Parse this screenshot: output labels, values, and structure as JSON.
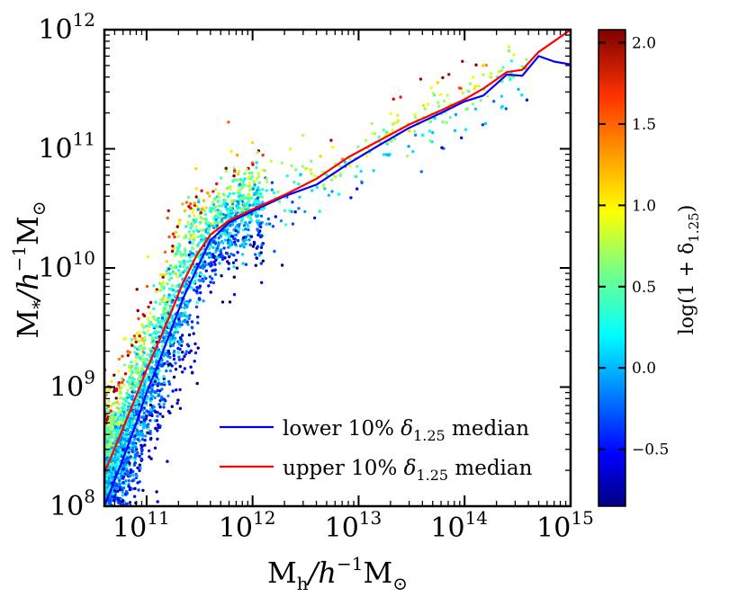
{
  "chart_data": {
    "type": "scatter",
    "xscale": "log",
    "yscale": "log",
    "xlim": [
      40000000000.0,
      1000000000000000.0
    ],
    "ylim": [
      100000000.0,
      1000000000000.0
    ],
    "x_ticks": [
      {
        "value": 100000000000.0,
        "base": "10",
        "exp": "11"
      },
      {
        "value": 1000000000000.0,
        "base": "10",
        "exp": "12"
      },
      {
        "value": 10000000000000.0,
        "base": "10",
        "exp": "13"
      },
      {
        "value": 100000000000000.0,
        "base": "10",
        "exp": "14"
      },
      {
        "value": 1000000000000000.0,
        "base": "10",
        "exp": "15"
      }
    ],
    "y_ticks": [
      {
        "value": 100000000.0,
        "base": "10",
        "exp": "8"
      },
      {
        "value": 1000000000.0,
        "base": "10",
        "exp": "9"
      },
      {
        "value": 10000000000.0,
        "base": "10",
        "exp": "10"
      },
      {
        "value": 100000000000.0,
        "base": "10",
        "exp": "11"
      },
      {
        "value": 1000000000000.0,
        "base": "10",
        "exp": "12"
      }
    ],
    "xlabel": {
      "main": "M",
      "sub": "h",
      "rest": "/h",
      "sup": "−1",
      "end": "M",
      "sun": "⊙"
    },
    "ylabel": {
      "main": "M",
      "sub": "*",
      "rest": "/h",
      "sup": "−1",
      "end": "M",
      "sun": "⊙"
    },
    "colorbar": {
      "label": "log(1 + δ",
      "label_sub": "1.25",
      "label_end": ")",
      "range": [
        -0.85,
        2.08
      ],
      "ticks": [
        {
          "value": -0.5,
          "label": "−0.5"
        },
        {
          "value": 0.0,
          "label": "0.0"
        },
        {
          "value": 0.5,
          "label": "0.5"
        },
        {
          "value": 1.0,
          "label": "1.0"
        },
        {
          "value": 1.5,
          "label": "1.5"
        },
        {
          "value": 2.0,
          "label": "2.0"
        }
      ]
    },
    "series": [
      {
        "name": "lower 10% δ1.25 median",
        "label_pre": "lower 10% ",
        "label_sym": "δ",
        "label_sub": "1.25",
        "label_post": " median",
        "color": "#0000ff",
        "x": [
          40000000000.0,
          60000000000.0,
          80000000000.0,
          100000000000.0,
          130000000000.0,
          170000000000.0,
          220000000000.0,
          300000000000.0,
          400000000000.0,
          600000000000.0,
          1000000000000.0,
          2000000000000.0,
          4000000000000.0,
          8000000000000.0,
          15000000000000.0,
          30000000000000.0,
          60000000000000.0,
          100000000000000.0,
          150000000000000.0,
          250000000000000.0,
          350000000000000.0,
          500000000000000.0,
          700000000000000.0,
          1000000000000000.0
        ],
        "y": [
          100000000.0,
          250000000.0,
          500000000.0,
          900000000.0,
          1600000000.0,
          3000000000.0,
          5500000000.0,
          10000000000.0,
          17000000000.0,
          24000000000.0,
          30000000000.0,
          40000000000.0,
          50000000000.0,
          75000000000.0,
          105000000000.0,
          150000000000.0,
          200000000000.0,
          250000000000.0,
          280000000000.0,
          420000000000.0,
          410000000000.0,
          600000000000.0,
          540000000000.0,
          510000000000.0
        ]
      },
      {
        "name": "upper 10% δ1.25 median",
        "label_pre": "upper 10% ",
        "label_sym": "δ",
        "label_sub": "1.25",
        "label_post": " median",
        "color": "#ff0000",
        "x": [
          40000000000.0,
          60000000000.0,
          80000000000.0,
          100000000000.0,
          130000000000.0,
          170000000000.0,
          220000000000.0,
          300000000000.0,
          400000000000.0,
          600000000000.0,
          1000000000000.0,
          2000000000000.0,
          4000000000000.0,
          8000000000000.0,
          15000000000000.0,
          30000000000000.0,
          60000000000000.0,
          100000000000000.0,
          150000000000000.0,
          250000000000000.0,
          350000000000000.0,
          500000000000000.0,
          700000000000000.0,
          1000000000000000.0
        ],
        "y": [
          190000000.0,
          450000000.0,
          850000000.0,
          1400000000.0,
          2400000000.0,
          4200000000.0,
          7500000000.0,
          13000000000.0,
          19000000000.0,
          25000000000.0,
          31000000000.0,
          41000000000.0,
          56000000000.0,
          85000000000.0,
          115000000000.0,
          160000000000.0,
          210000000000.0,
          260000000000.0,
          320000000000.0,
          440000000000.0,
          460000000000.0,
          650000000000.0,
          800000000000.0,
          1000000000000.0
        ]
      }
    ],
    "scatter": {
      "n_points": 3800,
      "description": "halo-galaxy sample colored by log(1+δ1.25)"
    }
  }
}
